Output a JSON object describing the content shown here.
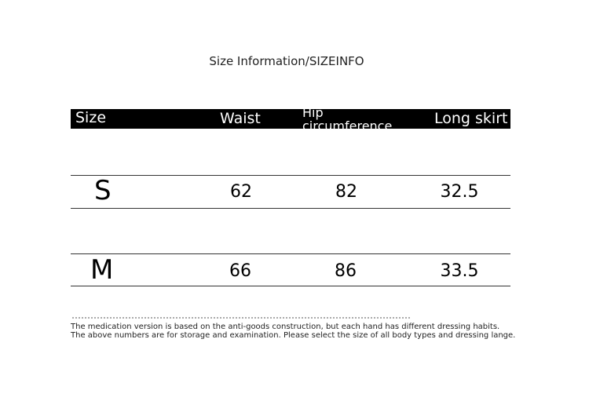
{
  "title": "Size Information/SIZEINFO",
  "table": {
    "headers": [
      "Size",
      "Waist",
      "Hip circumference",
      "Long skirt"
    ],
    "rows": [
      {
        "size": "S",
        "waist": "62",
        "hip": "82",
        "length": "32.5"
      },
      {
        "size": "M",
        "waist": "66",
        "hip": "86",
        "length": "33.5"
      }
    ]
  },
  "notes": [
    "The medication version is based on the anti-goods construction, but each hand has different dressing habits.",
    "The above numbers are for storage and examination. Please select the size of all body types and dressing lange."
  ]
}
